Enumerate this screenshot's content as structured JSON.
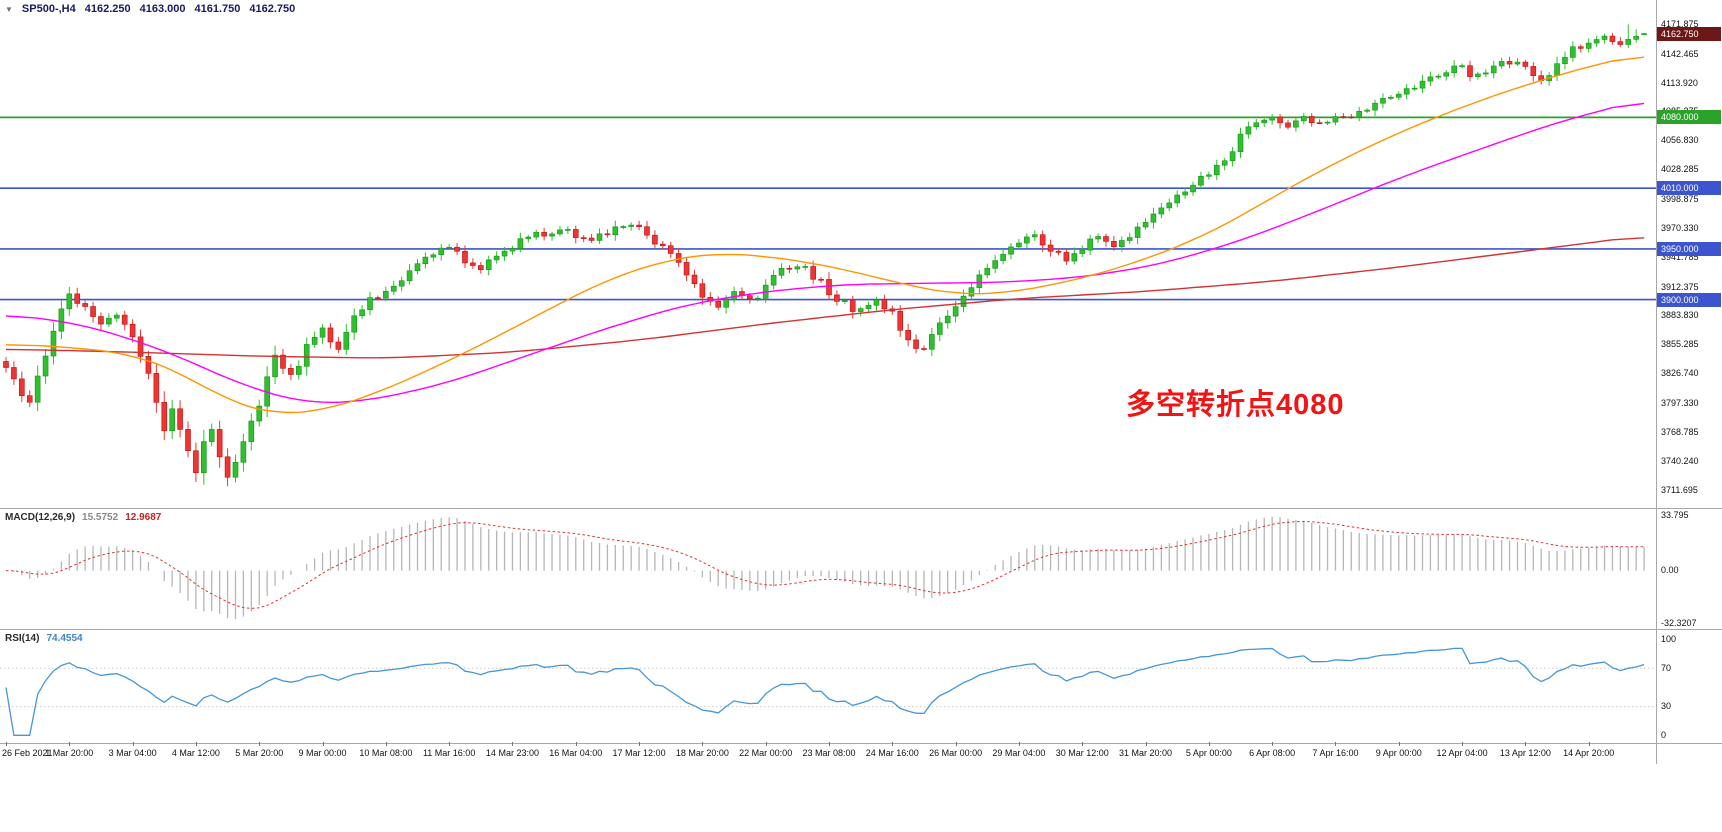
{
  "header": {
    "collapse_icon": "▼",
    "symbol_period": "SP500-,H4",
    "open": "4162.250",
    "high": "4163.000",
    "low": "4161.750",
    "close": "4162.750"
  },
  "annotation": {
    "text": "多空转折点4080",
    "color": "#f21414"
  },
  "price_axis": {
    "labels": [
      "4171.875",
      "4142.465",
      "4113.920",
      "4085.375",
      "4056.830",
      "4028.285",
      "3998.875",
      "3970.330",
      "3941.785",
      "3912.375",
      "3883.830",
      "3855.285",
      "3826.740",
      "3797.330",
      "3768.785",
      "3740.240",
      "3711.695"
    ],
    "boxed_levels": [
      {
        "value": 4162.75,
        "label": "4162.750",
        "color": "#6d1717"
      },
      {
        "value": 4080.0,
        "label": "4080.000",
        "color": "#2ba32b"
      },
      {
        "value": 4010.0,
        "label": "4010.000",
        "color": "#3c55cf"
      },
      {
        "value": 3950.0,
        "label": "3950.000",
        "color": "#3c55cf"
      },
      {
        "value": 3900.0,
        "label": "3900.000",
        "color": "#3c55cf"
      }
    ]
  },
  "time_axis": {
    "labels": [
      "26 Feb 2021",
      "1 Mar 20:00",
      "3 Mar 04:00",
      "4 Mar 12:00",
      "5 Mar 20:00",
      "9 Mar 00:00",
      "10 Mar 08:00",
      "11 Mar 16:00",
      "14 Mar 23:00",
      "16 Mar 04:00",
      "17 Mar 12:00",
      "18 Mar 20:00",
      "22 Mar 00:00",
      "23 Mar 08:00",
      "24 Mar 16:00",
      "26 Mar 00:00",
      "29 Mar 04:00",
      "30 Mar 12:00",
      "31 Mar 20:00",
      "5 Apr 00:00",
      "6 Apr 08:00",
      "7 Apr 16:00",
      "9 Apr 00:00",
      "12 Apr 04:00",
      "13 Apr 12:00",
      "14 Apr 20:00"
    ]
  },
  "macd_panel": {
    "label": "MACD(12,26,9)",
    "value1": "15.5752",
    "value2": "12.9687",
    "scale_labels": [
      {
        "value": 33.795,
        "text": "33.795"
      },
      {
        "value": 0,
        "text": "0.00"
      },
      {
        "value": -32.3207,
        "text": "-32.3207"
      }
    ]
  },
  "rsi_panel": {
    "label": "RSI(14)",
    "value": "74.4554",
    "scale_labels": [
      {
        "value": 100,
        "text": "100"
      },
      {
        "value": 70,
        "text": "70"
      },
      {
        "value": 30,
        "text": "30"
      },
      {
        "value": 0,
        "text": "0"
      }
    ],
    "levels": [
      70,
      30
    ]
  },
  "colors": {
    "up": "#2fbf2f",
    "up_stroke": "#149414",
    "down": "#ef3434",
    "down_stroke": "#b81212",
    "ma_fast": "#ff9500",
    "ma_mid": "#ff00ff",
    "ma_slow": "#d23333",
    "level_green": "#2ba32b",
    "level_blue": "#3c55cf",
    "macd_hist": "#b6b6b6",
    "macd_signal": "#e03030",
    "rsi_line": "#4596d8",
    "rsi_level": "#c8c8c8"
  },
  "chart_data": {
    "type": "candlestick+indicators",
    "title": "SP500-,H4",
    "symbol": "SP500-",
    "timeframe": "H4",
    "bars": 208,
    "price_range": [
      3711.695,
      4171.875
    ],
    "last_bar": {
      "open": 4162.25,
      "high": 4163.0,
      "low": 4161.75,
      "close": 4162.75
    },
    "recent_high": 4171.875,
    "levels": {
      "green": [
        4080.0
      ],
      "blue": [
        4010.0,
        3950.0,
        3900.0
      ]
    },
    "x_labels": [
      "26 Feb 2021",
      "1 Mar 20:00",
      "3 Mar 04:00",
      "4 Mar 12:00",
      "5 Mar 20:00",
      "9 Mar 00:00",
      "10 Mar 08:00",
      "11 Mar 16:00",
      "14 Mar 23:00",
      "16 Mar 04:00",
      "17 Mar 12:00",
      "18 Mar 20:00",
      "22 Mar 00:00",
      "23 Mar 08:00",
      "24 Mar 16:00",
      "26 Mar 00:00",
      "29 Mar 04:00",
      "30 Mar 12:00",
      "31 Mar 20:00",
      "5 Apr 00:00",
      "6 Apr 08:00",
      "7 Apr 16:00",
      "9 Apr 00:00",
      "12 Apr 04:00",
      "13 Apr 12:00",
      "14 Apr 20:00"
    ],
    "bars_per_x_label": 8,
    "price_anchors": [
      [
        0,
        3836
      ],
      [
        1,
        3820
      ],
      [
        3,
        3798
      ],
      [
        5,
        3845
      ],
      [
        7,
        3892
      ],
      [
        8,
        3906
      ],
      [
        10,
        3890
      ],
      [
        12,
        3878
      ],
      [
        14,
        3888
      ],
      [
        16,
        3866
      ],
      [
        18,
        3826
      ],
      [
        20,
        3772
      ],
      [
        21,
        3795
      ],
      [
        23,
        3748
      ],
      [
        24,
        3730
      ],
      [
        25,
        3758
      ],
      [
        26,
        3772
      ],
      [
        28,
        3725
      ],
      [
        30,
        3760
      ],
      [
        32,
        3792
      ],
      [
        33,
        3820
      ],
      [
        34,
        3845
      ],
      [
        36,
        3824
      ],
      [
        38,
        3852
      ],
      [
        40,
        3868
      ],
      [
        42,
        3854
      ],
      [
        44,
        3884
      ],
      [
        46,
        3900
      ],
      [
        48,
        3908
      ],
      [
        50,
        3920
      ],
      [
        52,
        3934
      ],
      [
        54,
        3944
      ],
      [
        56,
        3952
      ],
      [
        58,
        3938
      ],
      [
        60,
        3928
      ],
      [
        62,
        3944
      ],
      [
        64,
        3954
      ],
      [
        66,
        3960
      ],
      [
        68,
        3966
      ],
      [
        70,
        3970
      ],
      [
        72,
        3964
      ],
      [
        74,
        3956
      ],
      [
        76,
        3966
      ],
      [
        78,
        3974
      ],
      [
        80,
        3968
      ],
      [
        82,
        3956
      ],
      [
        84,
        3944
      ],
      [
        86,
        3924
      ],
      [
        88,
        3904
      ],
      [
        90,
        3896
      ],
      [
        92,
        3908
      ],
      [
        94,
        3898
      ],
      [
        96,
        3912
      ],
      [
        98,
        3928
      ],
      [
        100,
        3936
      ],
      [
        102,
        3924
      ],
      [
        104,
        3908
      ],
      [
        106,
        3896
      ],
      [
        108,
        3888
      ],
      [
        110,
        3898
      ],
      [
        112,
        3886
      ],
      [
        114,
        3858
      ],
      [
        116,
        3852
      ],
      [
        118,
        3876
      ],
      [
        120,
        3896
      ],
      [
        122,
        3912
      ],
      [
        124,
        3932
      ],
      [
        126,
        3946
      ],
      [
        128,
        3956
      ],
      [
        130,
        3962
      ],
      [
        132,
        3950
      ],
      [
        134,
        3941
      ],
      [
        136,
        3952
      ],
      [
        138,
        3960
      ],
      [
        140,
        3954
      ],
      [
        142,
        3964
      ],
      [
        144,
        3976
      ],
      [
        146,
        3990
      ],
      [
        148,
        4002
      ],
      [
        150,
        4014
      ],
      [
        152,
        4022
      ],
      [
        154,
        4038
      ],
      [
        156,
        4062
      ],
      [
        158,
        4074
      ],
      [
        160,
        4078
      ],
      [
        162,
        4068
      ],
      [
        164,
        4080
      ],
      [
        166,
        4074
      ],
      [
        168,
        4082
      ],
      [
        170,
        4077
      ],
      [
        172,
        4088
      ],
      [
        174,
        4096
      ],
      [
        176,
        4101
      ],
      [
        178,
        4108
      ],
      [
        180,
        4118
      ],
      [
        182,
        4126
      ],
      [
        184,
        4128
      ],
      [
        186,
        4119
      ],
      [
        188,
        4130
      ],
      [
        190,
        4136
      ],
      [
        192,
        4127
      ],
      [
        194,
        4116
      ],
      [
        196,
        4132
      ],
      [
        198,
        4146
      ],
      [
        200,
        4152
      ],
      [
        202,
        4158
      ],
      [
        204,
        4149
      ],
      [
        206,
        4158
      ],
      [
        207,
        4162.8
      ]
    ],
    "ma_fast_anchors": [
      [
        0,
        3856
      ],
      [
        8,
        3853
      ],
      [
        16,
        3846
      ],
      [
        22,
        3828
      ],
      [
        28,
        3800
      ],
      [
        34,
        3786
      ],
      [
        40,
        3790
      ],
      [
        46,
        3805
      ],
      [
        52,
        3825
      ],
      [
        60,
        3855
      ],
      [
        68,
        3888
      ],
      [
        76,
        3920
      ],
      [
        84,
        3940
      ],
      [
        90,
        3946
      ],
      [
        96,
        3943
      ],
      [
        102,
        3936
      ],
      [
        108,
        3926
      ],
      [
        114,
        3914
      ],
      [
        120,
        3905
      ],
      [
        126,
        3906
      ],
      [
        132,
        3914
      ],
      [
        138,
        3925
      ],
      [
        144,
        3940
      ],
      [
        150,
        3958
      ],
      [
        156,
        3982
      ],
      [
        162,
        4010
      ],
      [
        168,
        4035
      ],
      [
        174,
        4058
      ],
      [
        180,
        4078
      ],
      [
        186,
        4096
      ],
      [
        192,
        4112
      ],
      [
        198,
        4126
      ],
      [
        203,
        4136
      ],
      [
        207,
        4143
      ]
    ],
    "ma_mid_anchors": [
      [
        0,
        3886
      ],
      [
        10,
        3875
      ],
      [
        20,
        3850
      ],
      [
        30,
        3815
      ],
      [
        38,
        3797
      ],
      [
        46,
        3800
      ],
      [
        56,
        3818
      ],
      [
        66,
        3845
      ],
      [
        76,
        3872
      ],
      [
        86,
        3895
      ],
      [
        96,
        3908
      ],
      [
        106,
        3915
      ],
      [
        116,
        3916
      ],
      [
        126,
        3917
      ],
      [
        136,
        3922
      ],
      [
        146,
        3935
      ],
      [
        156,
        3958
      ],
      [
        166,
        3988
      ],
      [
        176,
        4020
      ],
      [
        186,
        4048
      ],
      [
        196,
        4075
      ],
      [
        207,
        4098
      ]
    ],
    "ma_slow_anchors": [
      [
        0,
        3851
      ],
      [
        16,
        3848
      ],
      [
        32,
        3844
      ],
      [
        48,
        3842
      ],
      [
        64,
        3848
      ],
      [
        80,
        3860
      ],
      [
        96,
        3876
      ],
      [
        112,
        3890
      ],
      [
        128,
        3901
      ],
      [
        144,
        3908
      ],
      [
        160,
        3918
      ],
      [
        176,
        3932
      ],
      [
        192,
        3948
      ],
      [
        207,
        3963
      ]
    ],
    "macd": {
      "params": [
        12,
        26,
        9
      ],
      "last_values": [
        15.5752,
        12.9687
      ],
      "scale": [
        -32.3207,
        33.795
      ]
    },
    "rsi": {
      "period": 14,
      "last_value": 74.4554,
      "levels": [
        70,
        30
      ],
      "scale": [
        0,
        100
      ]
    }
  }
}
